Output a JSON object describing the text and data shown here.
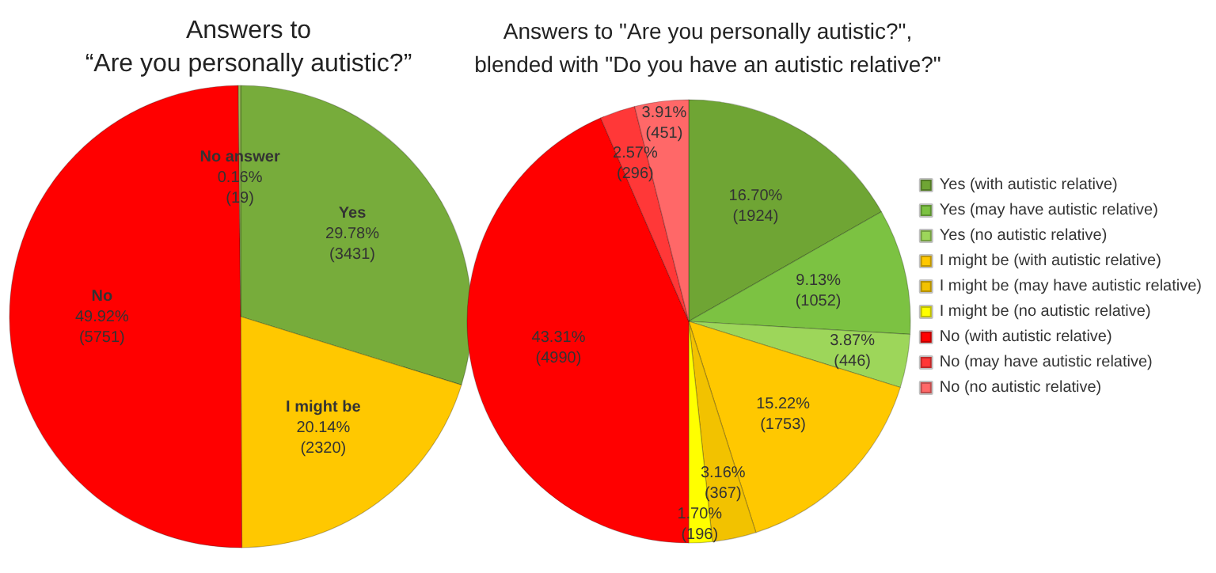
{
  "chart_data": [
    {
      "type": "pie",
      "title": "Answers to\n“Are you personally autistic?”",
      "categories": [
        "Yes",
        "I might be",
        "No",
        "No answer"
      ],
      "values": [
        3431,
        2320,
        5751,
        19
      ],
      "colors": [
        "#77ac3b",
        "#ffc800",
        "#ff0000",
        "#9bbb59"
      ],
      "value_labels": [
        "29.78%\n(3431)",
        "20.14%\n(2320)",
        "49.92%\n(5751)",
        "0.16%\n(19)"
      ],
      "legend": false
    },
    {
      "type": "pie",
      "title": "Answers to \"Are you personally autistic?\",\nblended with \"Do you have an autistic relative?\"",
      "categories": [
        "Yes (with autistic relative)",
        "Yes (may have autistic relative)",
        "Yes (no autistic relative)",
        "I might be (with autistic relative)",
        "I might be (may have autistic relative)",
        "I might be (no autistic relative)",
        "No (with autistic relative)",
        "No (may have autistic relative)",
        "No (no autistic relative)"
      ],
      "values": [
        1924,
        1052,
        446,
        1753,
        367,
        196,
        4990,
        296,
        451
      ],
      "colors": [
        "#6fa534",
        "#7cc242",
        "#9dd65a",
        "#ffc800",
        "#f2c200",
        "#ffff00",
        "#ff0000",
        "#ff3838",
        "#ff6868"
      ],
      "value_labels": [
        "16.70%\n(1924)",
        "9.13%\n(1052)",
        "3.87%\n(446)",
        "15.22%\n(1753)",
        "3.16%\n(367)",
        "1.70%\n(196)",
        "43.31%\n(4990)",
        "2.57%\n(296)",
        "3.91%\n(451)"
      ],
      "legend": "right"
    }
  ]
}
